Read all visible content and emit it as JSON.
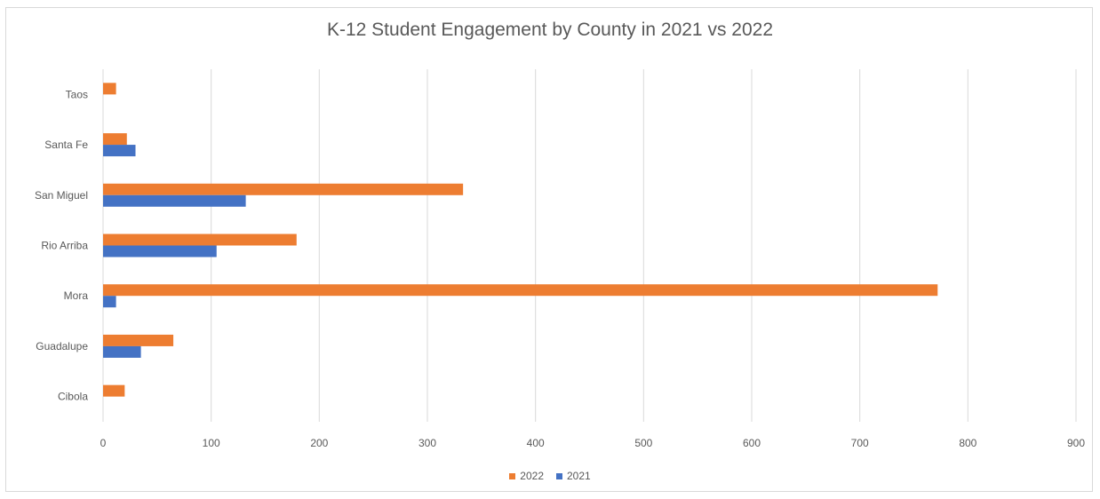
{
  "chart_data": {
    "type": "bar",
    "orientation": "horizontal",
    "title": "K-12 Student Engagement by County in 2021 vs 2022",
    "categories": [
      "Cibola",
      "Guadalupe",
      "Mora",
      "Rio Arriba",
      "San Miguel",
      "Santa Fe",
      "Taos"
    ],
    "series": [
      {
        "name": "2022",
        "color": "#ED7D31",
        "values": [
          20,
          65,
          772,
          179,
          333,
          22,
          12
        ]
      },
      {
        "name": "2021",
        "color": "#4472C4",
        "values": [
          0,
          35,
          12,
          105,
          132,
          30,
          0
        ]
      }
    ],
    "xlim": [
      0,
      900
    ],
    "x_ticks": [
      0,
      100,
      200,
      300,
      400,
      500,
      600,
      700,
      800,
      900
    ],
    "grid": "vertical",
    "legend_position": "bottom",
    "xlabel": "",
    "ylabel": ""
  }
}
